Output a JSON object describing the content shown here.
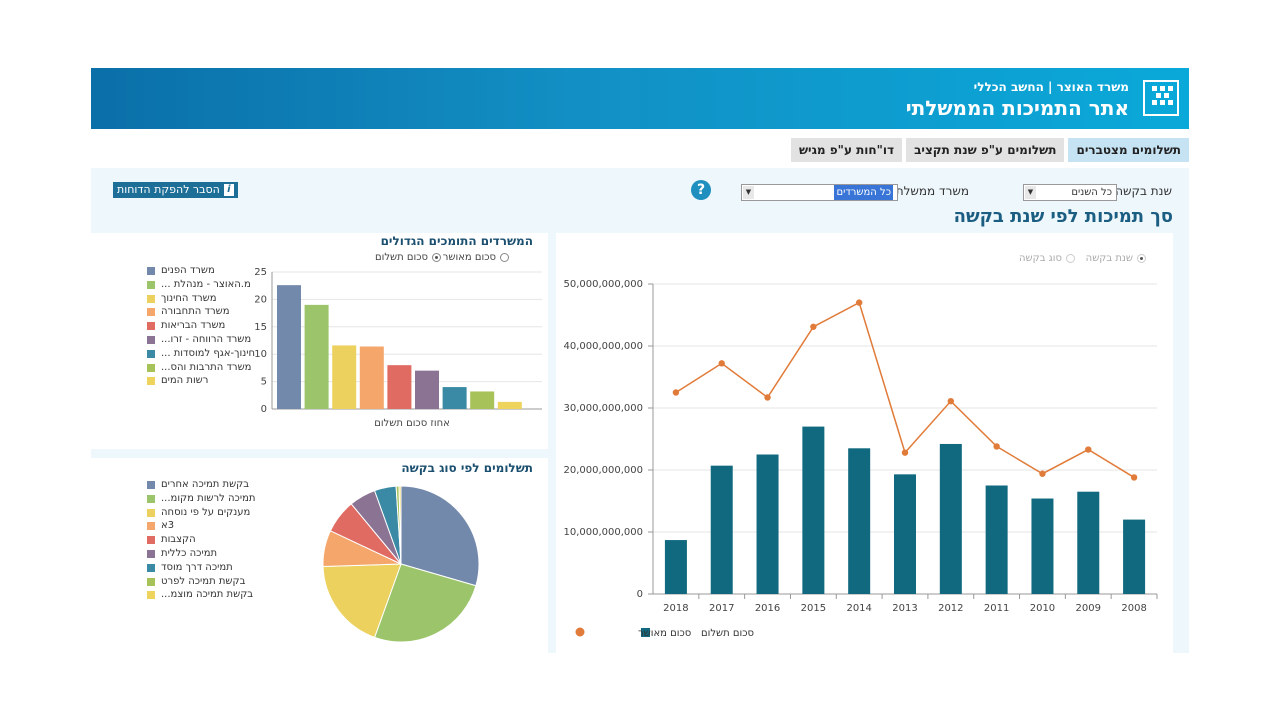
{
  "header": {
    "subtitle": "משרד האוצר | החשב הכללי",
    "title": "אתר התמיכות הממשלתי"
  },
  "tabs": [
    {
      "label": "תשלומים מצטברים",
      "active": true
    },
    {
      "label": "תשלומים ע\"פ שנת תקציב",
      "active": false
    },
    {
      "label": "דו\"חות ע\"פ מגיש",
      "active": false
    }
  ],
  "filters": {
    "year_label": "שנת בקשה",
    "year_value": "כל השנים",
    "ministry_label": "משרד ממשלתי",
    "ministry_value": "כל המשרדים",
    "explain_button": "הסבר להפקת הדוחות"
  },
  "main_title": "סך תמיכות לפי שנת בקשה",
  "colors": {
    "bar_main": "#10697f",
    "line_main": "#e07b39",
    "header": "#0b6fa8",
    "title_text": "#1b5e82"
  },
  "left_top": {
    "title": "המשרדים התומכים הגדולים",
    "radio_approved": "סכום מאושר",
    "radio_paid": "סכום תשלום"
  },
  "left_bottom": {
    "title": "תשלומים לפי סוג בקשה"
  },
  "right": {
    "radio_year": "שנת בקשה",
    "radio_type": "סוג בקשה"
  },
  "chart_data": [
    {
      "type": "bar",
      "title": "המשרדים התומכים הגדולים",
      "xlabel": "אחוז סכום תשלום",
      "ylim": [
        0,
        25
      ],
      "yticks": [
        0,
        5,
        10,
        15,
        20,
        25
      ],
      "grid": true,
      "legend_position": "left",
      "categories": [
        "משרד הפנים",
        "מ.האוצר - מנהלת ...",
        "משרד החינוך",
        "משרד התחבורה",
        "משרד הבריאות",
        "משרד הרווחה - זרו...",
        "חינוך-אגף למוסדות ...",
        "משרד התרבות והס...",
        "רשות המים"
      ],
      "values": [
        22.6,
        19.0,
        11.6,
        11.4,
        8.0,
        7.0,
        4.0,
        3.2,
        1.3
      ],
      "colors": [
        "#7289ab",
        "#9cc46a",
        "#ecd15e",
        "#f5a66b",
        "#e06b63",
        "#8b7394",
        "#3a8aa5",
        "#a8c25a",
        "#eed35c"
      ]
    },
    {
      "type": "pie",
      "title": "תשלומים לפי סוג בקשה",
      "legend_position": "left",
      "labels": [
        "בקשת תמיכה אחרים",
        "תמיכה לרשות מקומ...",
        "מענקים על פי נוסחה",
        "3א",
        "הקצבות",
        "תמיכה כללית",
        "תמיכה דרך מוסד",
        "בקשת תמיכה לפרט",
        "בקשת תמיכה מוצמ..."
      ],
      "values": [
        29.5,
        26.0,
        19.0,
        7.5,
        7.0,
        5.5,
        4.5,
        0.6,
        0.4
      ],
      "colors": [
        "#7289ab",
        "#9cc46a",
        "#ecd15e",
        "#f5a66b",
        "#e06b63",
        "#8b7394",
        "#3a8aa5",
        "#a8c25a",
        "#eed35c"
      ]
    },
    {
      "type": "bar",
      "title": "סך תמיכות לפי שנת בקשה",
      "categories": [
        "2018",
        "2017",
        "2016",
        "2015",
        "2014",
        "2013",
        "2012",
        "2011",
        "2010",
        "2009",
        "2008"
      ],
      "ylim": [
        0,
        50000000000
      ],
      "yticks": [
        0,
        10000000000,
        20000000000,
        30000000000,
        40000000000,
        50000000000
      ],
      "ytick_labels": [
        "0",
        "10,000,000,000",
        "20,000,000,000",
        "30,000,000,000",
        "40,000,000,000",
        "50,000,000,000"
      ],
      "legend_position": "bottom",
      "series": [
        {
          "name": "סכום תשלום",
          "type": "bar",
          "color": "#10697f",
          "values": [
            8700000000,
            20700000000,
            22500000000,
            27000000000,
            23500000000,
            19300000000,
            24200000000,
            17500000000,
            15400000000,
            16500000000,
            12000000000
          ]
        },
        {
          "name": "סכום מאושר",
          "type": "line",
          "color": "#e07b39",
          "values": [
            32500000000,
            37200000000,
            31700000000,
            43100000000,
            47000000000,
            22800000000,
            31100000000,
            23800000000,
            19400000000,
            23300000000,
            18800000000
          ]
        }
      ]
    }
  ]
}
